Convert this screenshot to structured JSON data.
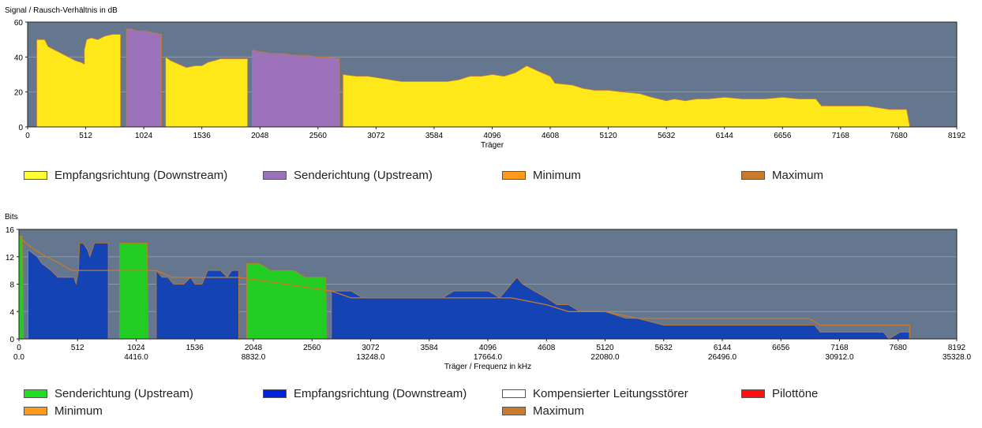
{
  "chart_data": [
    {
      "type": "area",
      "title": "Signal / Rausch-Verhältnis in dB",
      "ylabel": "Signal / Rausch-Verhältnis in dB",
      "xlabel": "Träger",
      "xlim": [
        0,
        8192
      ],
      "ylim": [
        0,
        60
      ],
      "x_ticks": [
        "0",
        "512",
        "1024",
        "1536",
        "2048",
        "2560",
        "3072",
        "3584",
        "4096",
        "4608",
        "5120",
        "5632",
        "6144",
        "6656",
        "7168",
        "7680",
        "8192"
      ],
      "y_ticks": [
        "0",
        "20",
        "40",
        "60"
      ],
      "grid": true,
      "series": [
        {
          "name": "Empfangsrichtung (Downstream)",
          "color": "#ffe81a",
          "points": [
            [
              80,
              0
            ],
            [
              80,
              50
            ],
            [
              150,
              50
            ],
            [
              180,
              46
            ],
            [
              240,
              44
            ],
            [
              300,
              42
            ],
            [
              360,
              40
            ],
            [
              420,
              38
            ],
            [
              470,
              37
            ],
            [
              500,
              36
            ],
            [
              500,
              44
            ],
            [
              520,
              50
            ],
            [
              560,
              51
            ],
            [
              620,
              50
            ],
            [
              680,
              52
            ],
            [
              750,
              53
            ],
            [
              820,
              53
            ],
            [
              820,
              0
            ],
            [
              1216,
              0
            ],
            [
              1216,
              40
            ],
            [
              1260,
              38
            ],
            [
              1330,
              36
            ],
            [
              1400,
              34
            ],
            [
              1480,
              35
            ],
            [
              1536,
              35
            ],
            [
              1590,
              37
            ],
            [
              1650,
              38
            ],
            [
              1700,
              39
            ],
            [
              1780,
              39
            ],
            [
              1880,
              39
            ],
            [
              1940,
              39
            ],
            [
              1940,
              0
            ],
            [
              2780,
              0
            ],
            [
              2780,
              30
            ],
            [
              2900,
              29
            ],
            [
              3000,
              29
            ],
            [
              3100,
              28
            ],
            [
              3200,
              27
            ],
            [
              3300,
              26
            ],
            [
              3400,
              26
            ],
            [
              3500,
              26
            ],
            [
              3600,
              26
            ],
            [
              3700,
              26
            ],
            [
              3800,
              27
            ],
            [
              3900,
              29
            ],
            [
              4000,
              29
            ],
            [
              4100,
              30
            ],
            [
              4200,
              29
            ],
            [
              4300,
              31
            ],
            [
              4400,
              35
            ],
            [
              4500,
              32
            ],
            [
              4608,
              29
            ],
            [
              4650,
              25
            ],
            [
              4800,
              24
            ],
            [
              4900,
              22
            ],
            [
              5000,
              21
            ],
            [
              5120,
              21
            ],
            [
              5250,
              20
            ],
            [
              5400,
              19
            ],
            [
              5500,
              17
            ],
            [
              5632,
              15
            ],
            [
              5700,
              16
            ],
            [
              5800,
              15
            ],
            [
              5900,
              16
            ],
            [
              6000,
              16
            ],
            [
              6144,
              17
            ],
            [
              6300,
              16
            ],
            [
              6500,
              16
            ],
            [
              6656,
              17
            ],
            [
              6800,
              16
            ],
            [
              6950,
              16
            ],
            [
              7000,
              12
            ],
            [
              7168,
              12
            ],
            [
              7400,
              12
            ],
            [
              7500,
              11
            ],
            [
              7600,
              10
            ],
            [
              7750,
              10
            ],
            [
              7780,
              0
            ]
          ]
        },
        {
          "name": "Senderichtung (Upstream)",
          "color": "#9c73bb",
          "points": [
            [
              870,
              0
            ],
            [
              870,
              56
            ],
            [
              920,
              56
            ],
            [
              960,
              55
            ],
            [
              1020,
              55
            ],
            [
              1100,
              54
            ],
            [
              1180,
              53
            ],
            [
              1180,
              0
            ],
            [
              1980,
              0
            ],
            [
              1980,
              44
            ],
            [
              2050,
              43
            ],
            [
              2150,
              42
            ],
            [
              2250,
              42
            ],
            [
              2350,
              41
            ],
            [
              2450,
              41
            ],
            [
              2550,
              40
            ],
            [
              2640,
              40
            ],
            [
              2750,
              39
            ],
            [
              2750,
              0
            ]
          ]
        },
        {
          "name": "Minimum",
          "color": "#ff9a1a",
          "points": []
        },
        {
          "name": "Maximum",
          "color": "#c97a2a",
          "points": []
        }
      ]
    },
    {
      "type": "area",
      "title": "Bits",
      "ylabel": "Bits",
      "xlabel": "Träger / Frequenz in kHz",
      "xlim": [
        0,
        8192
      ],
      "ylim": [
        0,
        16
      ],
      "x_ticks": [
        "0",
        "512",
        "1024",
        "1536",
        "2048",
        "2560",
        "3072",
        "3584",
        "4096",
        "4608",
        "5120",
        "5632",
        "6144",
        "6656",
        "7168",
        "7680",
        "8192"
      ],
      "x_freq_ticks": [
        "0.0",
        "4416.0",
        "8832.0",
        "13248.0",
        "17664.0",
        "22080.0",
        "26496.0",
        "30912.0",
        "35328.0"
      ],
      "y_ticks": [
        "0",
        "4",
        "8",
        "12",
        "16"
      ],
      "grid": true,
      "series": [
        {
          "name": "Senderichtung (Upstream)",
          "color": "#22cc22",
          "points": [
            [
              0,
              0
            ],
            [
              0,
              15
            ],
            [
              30,
              15
            ],
            [
              40,
              0
            ],
            [
              880,
              0
            ],
            [
              880,
              14
            ],
            [
              1120,
              14
            ],
            [
              1130,
              0
            ],
            [
              1990,
              0
            ],
            [
              1990,
              11
            ],
            [
              2100,
              11
            ],
            [
              2200,
              10
            ],
            [
              2300,
              10
            ],
            [
              2400,
              10
            ],
            [
              2500,
              9
            ],
            [
              2600,
              9
            ],
            [
              2680,
              9
            ],
            [
              2690,
              0
            ]
          ]
        },
        {
          "name": "Empfangsrichtung (Downstream)",
          "color": "#1444b4",
          "points": [
            [
              80,
              0
            ],
            [
              80,
              13
            ],
            [
              160,
              12
            ],
            [
              200,
              11
            ],
            [
              280,
              10
            ],
            [
              340,
              9
            ],
            [
              420,
              9
            ],
            [
              480,
              9
            ],
            [
              500,
              8
            ],
            [
              520,
              10
            ],
            [
              530,
              14
            ],
            [
              560,
              14
            ],
            [
              600,
              13
            ],
            [
              620,
              12
            ],
            [
              660,
              14
            ],
            [
              760,
              14
            ],
            [
              780,
              14
            ],
            [
              780,
              0
            ],
            [
              1200,
              0
            ],
            [
              1200,
              10
            ],
            [
              1250,
              9
            ],
            [
              1300,
              9
            ],
            [
              1350,
              8
            ],
            [
              1440,
              8
            ],
            [
              1500,
              9
            ],
            [
              1536,
              8
            ],
            [
              1600,
              8
            ],
            [
              1650,
              10
            ],
            [
              1760,
              10
            ],
            [
              1820,
              9
            ],
            [
              1860,
              10
            ],
            [
              1920,
              10
            ],
            [
              1920,
              0
            ],
            [
              2730,
              0
            ],
            [
              2730,
              7
            ],
            [
              2800,
              7
            ],
            [
              2900,
              7
            ],
            [
              3000,
              6
            ],
            [
              3100,
              6
            ],
            [
              3200,
              6
            ],
            [
              3300,
              6
            ],
            [
              3400,
              6
            ],
            [
              3500,
              6
            ],
            [
              3600,
              6
            ],
            [
              3700,
              6
            ],
            [
              3800,
              7
            ],
            [
              3900,
              7
            ],
            [
              4000,
              7
            ],
            [
              4100,
              7
            ],
            [
              4200,
              6
            ],
            [
              4300,
              8
            ],
            [
              4350,
              9
            ],
            [
              4400,
              8
            ],
            [
              4500,
              7
            ],
            [
              4608,
              6
            ],
            [
              4700,
              5
            ],
            [
              4800,
              5
            ],
            [
              4900,
              4
            ],
            [
              5120,
              4
            ],
            [
              5300,
              3
            ],
            [
              5400,
              3
            ],
            [
              5632,
              2
            ],
            [
              5800,
              2
            ],
            [
              6000,
              2
            ],
            [
              6144,
              2
            ],
            [
              6300,
              2
            ],
            [
              6400,
              2
            ],
            [
              6500,
              2
            ],
            [
              6656,
              2
            ],
            [
              6800,
              2
            ],
            [
              6950,
              2
            ],
            [
              7000,
              1
            ],
            [
              7168,
              1
            ],
            [
              7400,
              1
            ],
            [
              7550,
              1
            ],
            [
              7600,
              0
            ],
            [
              7700,
              1
            ],
            [
              7780,
              1
            ],
            [
              7780,
              0
            ]
          ]
        },
        {
          "name": "Kompensierter Leitungsstörer",
          "color": "#ffffff",
          "points": []
        },
        {
          "name": "Pilottöne",
          "color": "#ff1010",
          "points": []
        },
        {
          "name": "Minimum",
          "color": "#ff9a1a",
          "points": []
        },
        {
          "name": "Maximum",
          "color": "#c97a2a",
          "points": [
            [
              0,
              15
            ],
            [
              60,
              14
            ],
            [
              140,
              13
            ],
            [
              240,
              12
            ],
            [
              360,
              11
            ],
            [
              460,
              10
            ],
            [
              520,
              10
            ],
            [
              620,
              10
            ],
            [
              700,
              10
            ],
            [
              780,
              10
            ],
            [
              1200,
              10
            ],
            [
              1340,
              9
            ],
            [
              1500,
              9
            ],
            [
              1700,
              9
            ],
            [
              1920,
              9
            ],
            [
              2730,
              7
            ],
            [
              2900,
              6
            ],
            [
              3100,
              6
            ],
            [
              3400,
              6
            ],
            [
              3700,
              6
            ],
            [
              4000,
              6
            ],
            [
              4300,
              6
            ],
            [
              4608,
              5
            ],
            [
              4800,
              4
            ],
            [
              5000,
              4
            ],
            [
              5120,
              4
            ],
            [
              5400,
              3
            ],
            [
              5632,
              3
            ],
            [
              6000,
              3
            ],
            [
              6500,
              3
            ],
            [
              6900,
              3
            ],
            [
              7000,
              2
            ],
            [
              7300,
              2
            ],
            [
              7600,
              2
            ],
            [
              7780,
              2
            ],
            [
              7780,
              0
            ]
          ]
        }
      ]
    }
  ],
  "legend1": {
    "items": [
      {
        "label": "Empfangsrichtung (Downstream)",
        "color": "#ffff33"
      },
      {
        "label": "Senderichtung (Upstream)",
        "color": "#9c73bb"
      },
      {
        "label": "Minimum",
        "color": "#ff9a1a"
      },
      {
        "label": "Maximum",
        "color": "#c97a2a"
      }
    ]
  },
  "legend2": {
    "items": [
      {
        "label": "Senderichtung (Upstream)",
        "color": "#22dd22"
      },
      {
        "label": "Empfangsrichtung (Downstream)",
        "color": "#0022dd"
      },
      {
        "label": "Kompensierter Leitungsstörer",
        "color": "#ffffff"
      },
      {
        "label": "Pilottöne",
        "color": "#ff1010"
      },
      {
        "label": "Minimum",
        "color": "#ff9a1a"
      },
      {
        "label": "Maximum",
        "color": "#c97a2a"
      }
    ]
  }
}
